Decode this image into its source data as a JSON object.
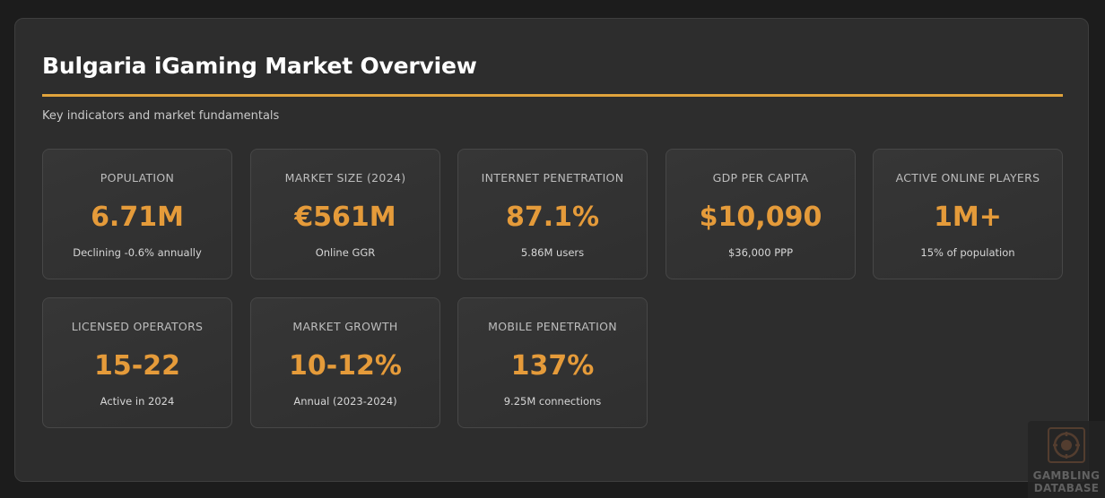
{
  "header": {
    "title": "Bulgaria iGaming Market Overview",
    "subtitle": "Key indicators and market fundamentals"
  },
  "cards": [
    {
      "label": "POPULATION",
      "value": "6.71M",
      "sub": "Declining -0.6% annually"
    },
    {
      "label": "MARKET SIZE (2024)",
      "value": "€561M",
      "sub": "Online GGR"
    },
    {
      "label": "INTERNET PENETRATION",
      "value": "87.1%",
      "sub": "5.86M users"
    },
    {
      "label": "GDP PER CAPITA",
      "value": "$10,090",
      "sub": "$36,000 PPP"
    },
    {
      "label": "ACTIVE ONLINE PLAYERS",
      "value": "1M+",
      "sub": "15% of population"
    },
    {
      "label": "LICENSED OPERATORS",
      "value": "15-22",
      "sub": "Active in 2024"
    },
    {
      "label": "MARKET GROWTH",
      "value": "10-12%",
      "sub": "Annual (2023-2024)"
    },
    {
      "label": "MOBILE PENETRATION",
      "value": "137%",
      "sub": "9.25M connections"
    }
  ],
  "watermark": {
    "line1": "GAMBLING",
    "line2": "DATABASE"
  },
  "colors": {
    "accent": "#e59b3a",
    "rule": "#e0a33c",
    "panel": "#2d2d2d",
    "background": "#1c1c1c"
  }
}
